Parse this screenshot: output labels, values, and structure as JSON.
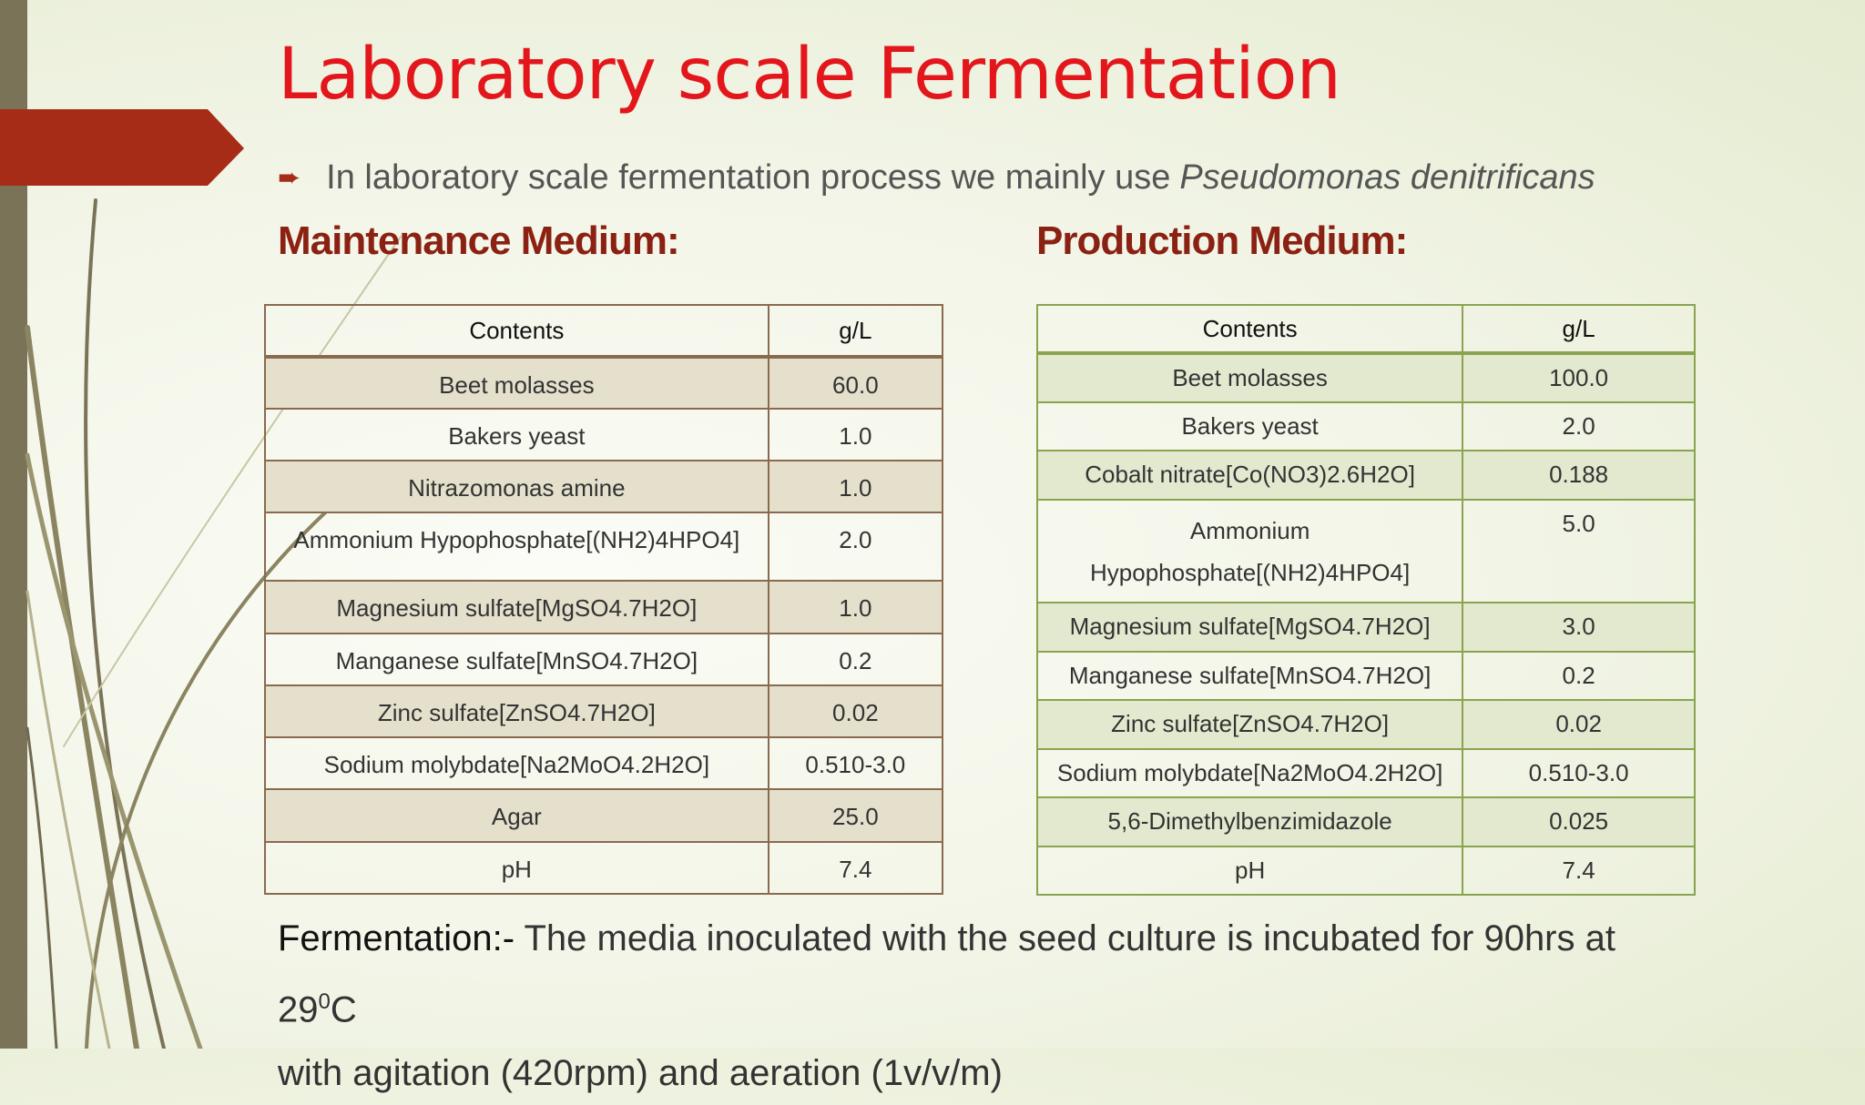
{
  "slide": {
    "title": "Laboratory scale Fermentation",
    "bullet_text": "In laboratory scale fermentation process we mainly use",
    "bullet_organism": "Pseudomonas denitrificans",
    "maintenance_heading": "Maintenance Medium:",
    "production_heading": "Production Medium:",
    "colors": {
      "title": "#e3161c",
      "heading": "#8b2113",
      "accent": "#a62c17",
      "left_bar": "#7b7358"
    }
  },
  "maintenance": {
    "col_contents": "Contents",
    "col_gl": "g/L",
    "rows": [
      {
        "name": "Beet molasses",
        "value": "60.0"
      },
      {
        "name": "Bakers yeast",
        "value": "1.0"
      },
      {
        "name": "Nitrazomonas amine",
        "value": "1.0"
      },
      {
        "name": "Ammonium Hypophosphate[(NH2)4HPO4]",
        "value": "2.0"
      },
      {
        "name": "Magnesium sulfate[MgSO4.7H2O]",
        "value": "1.0"
      },
      {
        "name": "Manganese sulfate[MnSO4.7H2O]",
        "value": "0.2"
      },
      {
        "name": "Zinc sulfate[ZnSO4.7H2O]",
        "value": "0.02"
      },
      {
        "name": "Sodium molybdate[Na2MoO4.2H2O]",
        "value": "0.510-3.0"
      },
      {
        "name": "Agar",
        "value": "25.0"
      },
      {
        "name": "pH",
        "value": "7.4"
      }
    ]
  },
  "production": {
    "col_contents": "Contents",
    "col_gl": "g/L",
    "rows": [
      {
        "name": "Beet molasses",
        "value": "100.0"
      },
      {
        "name": "Bakers yeast",
        "value": "2.0"
      },
      {
        "name": "Cobalt nitrate[Co(NO3)2.6H2O]",
        "value": "0.188"
      },
      {
        "name": "Ammonium Hypophosphate[(NH2)4HPO4]",
        "value": "5.0"
      },
      {
        "name": "Magnesium sulfate[MgSO4.7H2O]",
        "value": "3.0"
      },
      {
        "name": "Manganese sulfate[MnSO4.7H2O]",
        "value": "0.2"
      },
      {
        "name": "Zinc sulfate[ZnSO4.7H2O]",
        "value": "0.02"
      },
      {
        "name": "Sodium molybdate[Na2MoO4.2H2O]",
        "value": "0.510-3.0"
      },
      {
        "name": "5,6-Dimethylbenzimidazole",
        "value": "0.025"
      },
      {
        "name": "pH",
        "value": "7.4"
      }
    ]
  },
  "footer": {
    "label": "Fermentation:-",
    "text": "The media inoculated with the seed culture is incubated for 90hrs at 29",
    "degree": "0",
    "unit": "C",
    "line2": "with agitation (420rpm) and aeration (1v/v/m)"
  }
}
